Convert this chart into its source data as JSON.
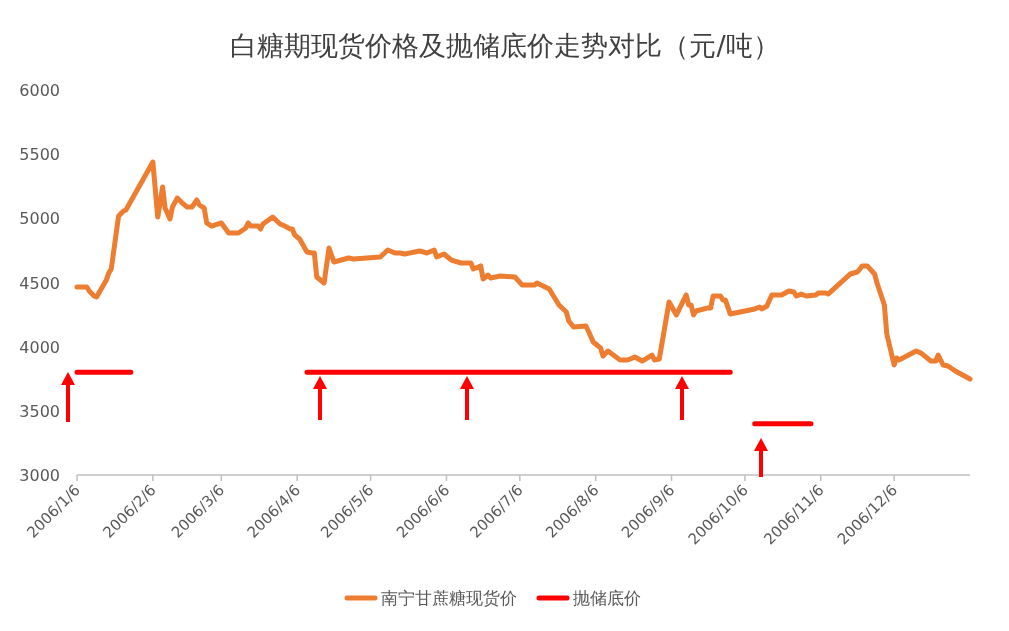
{
  "chart_data": {
    "type": "line",
    "title": "白糖期现货价格及抛储底价走势对比（元/吨）",
    "xlim": [
      "2006-01-06",
      "2007-01-06"
    ],
    "xticks": [
      {
        "value": "2006-01-06",
        "label": "2006/1/6"
      },
      {
        "value": "2006-02-06",
        "label": "2006/2/6"
      },
      {
        "value": "2006-03-06",
        "label": "2006/3/6"
      },
      {
        "value": "2006-04-06",
        "label": "2006/4/6"
      },
      {
        "value": "2006-05-06",
        "label": "2006/5/6"
      },
      {
        "value": "2006-06-06",
        "label": "2006/6/6"
      },
      {
        "value": "2006-07-06",
        "label": "2006/7/6"
      },
      {
        "value": "2006-08-06",
        "label": "2006/8/6"
      },
      {
        "value": "2006-09-06",
        "label": "2006/9/6"
      },
      {
        "value": "2006-10-06",
        "label": "2006/10/6"
      },
      {
        "value": "2006-11-06",
        "label": "2006/11/6"
      },
      {
        "value": "2006-12-06",
        "label": "2006/12/6"
      }
    ],
    "ylim": [
      3000,
      6000
    ],
    "yticks": [
      3000,
      3500,
      4000,
      4500,
      5000,
      5500,
      6000
    ],
    "grid": false,
    "legend": "bottom",
    "marker": "none",
    "line_style": "solid",
    "series": [
      {
        "name": "南宁甘蔗糖现货价",
        "color": "#ed7d31",
        "x": [
          "2006-01-06",
          "2006-01-10",
          "2006-01-11",
          "2006-01-13",
          "2006-01-14",
          "2006-01-18",
          "2006-01-19",
          "2006-01-20",
          "2006-01-23",
          "2006-01-25",
          "2006-01-26",
          "2006-02-06",
          "2006-02-08",
          "2006-02-10",
          "2006-02-11",
          "2006-02-13",
          "2006-02-14",
          "2006-02-16",
          "2006-02-18",
          "2006-02-20",
          "2006-02-22",
          "2006-02-24",
          "2006-02-25",
          "2006-02-27",
          "2006-02-28",
          "2006-03-02",
          "2006-03-06",
          "2006-03-09",
          "2006-03-13",
          "2006-03-16",
          "2006-03-17",
          "2006-03-18",
          "2006-03-21",
          "2006-03-22",
          "2006-03-23",
          "2006-03-27",
          "2006-03-30",
          "2006-04-01",
          "2006-04-03",
          "2006-04-04",
          "2006-04-05",
          "2006-04-07",
          "2006-04-10",
          "2006-04-12",
          "2006-04-13",
          "2006-04-14",
          "2006-04-17",
          "2006-04-19",
          "2006-04-21",
          "2006-04-27",
          "2006-04-29",
          "2006-05-10",
          "2006-05-13",
          "2006-05-16",
          "2006-05-18",
          "2006-05-20",
          "2006-05-26",
          "2006-05-29",
          "2006-06-01",
          "2006-06-02",
          "2006-06-05",
          "2006-06-08",
          "2006-06-12",
          "2006-06-16",
          "2006-06-17",
          "2006-06-20",
          "2006-06-21",
          "2006-06-23",
          "2006-06-24",
          "2006-06-28",
          "2006-07-04",
          "2006-07-07",
          "2006-07-12",
          "2006-07-13",
          "2006-07-18",
          "2006-07-20",
          "2006-07-22",
          "2006-07-25",
          "2006-07-26",
          "2006-07-28",
          "2006-08-02",
          "2006-08-03",
          "2006-08-05",
          "2006-08-08",
          "2006-08-09",
          "2006-08-11",
          "2006-08-16",
          "2006-08-19",
          "2006-08-22",
          "2006-08-25",
          "2006-08-29",
          "2006-08-30",
          "2006-09-01",
          "2006-09-05",
          "2006-09-08",
          "2006-09-12",
          "2006-09-13",
          "2006-09-14",
          "2006-09-15",
          "2006-09-16",
          "2006-09-21",
          "2006-09-22",
          "2006-09-23",
          "2006-09-26",
          "2006-09-27",
          "2006-09-28",
          "2006-09-30",
          "2006-10-10",
          "2006-10-12",
          "2006-10-13",
          "2006-10-15",
          "2006-10-17",
          "2006-10-21",
          "2006-10-24",
          "2006-10-26",
          "2006-10-27",
          "2006-10-29",
          "2006-10-31",
          "2006-11-04",
          "2006-11-05",
          "2006-11-08",
          "2006-11-09",
          "2006-11-18",
          "2006-11-21",
          "2006-11-23",
          "2006-11-25",
          "2006-11-28",
          "2006-11-29",
          "2006-12-02",
          "2006-12-03",
          "2006-12-06",
          "2006-12-07",
          "2006-12-08",
          "2006-12-15",
          "2006-12-17",
          "2006-12-21",
          "2006-12-23",
          "2006-12-24",
          "2006-12-26",
          "2006-12-28",
          "2006-12-31",
          "2007-01-06"
        ],
        "values": [
          4465,
          4465,
          4434,
          4395,
          4387,
          4520,
          4574,
          4605,
          5018,
          5057,
          5065,
          5439,
          5010,
          5244,
          5081,
          4995,
          5088,
          5158,
          5119,
          5088,
          5088,
          5143,
          5104,
          5080,
          4964,
          4940,
          4964,
          4886,
          4886,
          4925,
          4964,
          4940,
          4940,
          4917,
          4956,
          5010,
          4956,
          4940,
          4917,
          4917,
          4870,
          4839,
          4738,
          4730,
          4730,
          4543,
          4496,
          4769,
          4660,
          4691,
          4683,
          4699,
          4753,
          4730,
          4730,
          4722,
          4746,
          4730,
          4753,
          4699,
          4722,
          4675,
          4652,
          4652,
          4605,
          4629,
          4527,
          4558,
          4535,
          4551,
          4543,
          4480,
          4480,
          4496,
          4449,
          4387,
          4325,
          4270,
          4200,
          4153,
          4161,
          4122,
          4036,
          3990,
          3927,
          3966,
          3896,
          3896,
          3919,
          3888,
          3935,
          3896,
          3904,
          4348,
          4247,
          4403,
          4325,
          4325,
          4247,
          4278,
          4302,
          4302,
          4395,
          4395,
          4364,
          4364,
          4255,
          4294,
          4309,
          4294,
          4317,
          4403,
          4403,
          4434,
          4426,
          4395,
          4410,
          4395,
          4403,
          4418,
          4418,
          4410,
          4566,
          4582,
          4629,
          4629,
          4566,
          4496,
          4325,
          4099,
          3857,
          3912,
          3896,
          3966,
          3950,
          3888,
          3888,
          3935,
          3857,
          3849,
          3810,
          3748
        ]
      },
      {
        "name": "抛储底价",
        "color": "#ff0000",
        "x": [
          "2006-01-06",
          "2006-01-28",
          "2006-03-01",
          "2006-04-10",
          "2006-09-30",
          "2006-10-05",
          "2006-10-10",
          "2006-11-02"
        ],
        "values": [
          3800,
          3800,
          null,
          3800,
          3800,
          null,
          3400,
          3400
        ]
      }
    ]
  }
}
